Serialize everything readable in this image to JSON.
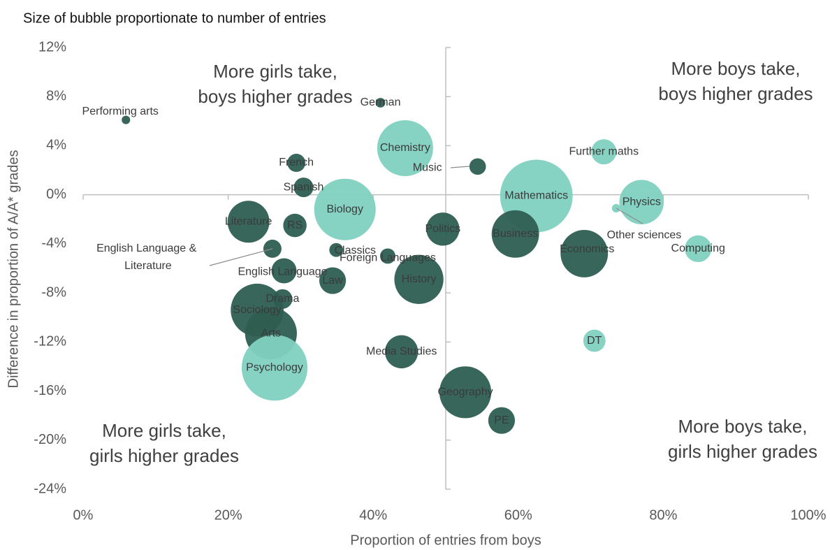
{
  "chart_data": {
    "type": "bubble",
    "title": "Size of bubble proportionate to number of entries",
    "x_label": "Proportion of entries from boys",
    "y_label": "Difference in proportion of A/A* grades",
    "annotations": [
      [
        "More girls take,",
        "boys higher grades"
      ],
      [
        "More boys take,",
        "boys higher grades"
      ],
      [
        "More girls take,",
        "girls higher grades"
      ],
      [
        "More boys take,",
        "girls higher grades"
      ]
    ],
    "labels": [
      "Performing arts",
      "German",
      "Chemistry",
      "Music",
      "Further maths",
      "French",
      "Spanish",
      "Biology",
      "Mathematics",
      "Physics",
      "Other sciences",
      "Literature",
      "RS",
      "Politics",
      "Business",
      "Economics",
      "Computing",
      "English Language & Literature",
      "Classics",
      "Foreign Languages",
      "English Language",
      "Law",
      "History",
      "Drama",
      "Sociology",
      "Arts",
      "DT",
      "Media Studies",
      "Psychology",
      "Geography",
      "PE"
    ],
    "x": [
      5.9,
      41.0,
      44.4,
      54.4,
      71.8,
      29.4,
      30.4,
      36.1,
      62.5,
      77.0,
      73.5,
      22.8,
      29.2,
      49.6,
      59.6,
      69.1,
      84.8,
      26.1,
      34.9,
      42.0,
      27.7,
      34.4,
      46.3,
      27.5,
      24.0,
      25.9,
      70.5,
      43.9,
      26.4,
      52.7,
      57.7
    ],
    "y": [
      6.1,
      7.5,
      3.8,
      2.3,
      3.5,
      2.6,
      0.6,
      -1.2,
      -0.1,
      -0.6,
      -1.1,
      -2.2,
      -2.5,
      -2.8,
      -3.2,
      -4.8,
      -4.4,
      -4.4,
      -4.5,
      -5.0,
      -6.2,
      -7.0,
      -6.9,
      -8.5,
      -9.4,
      -11.3,
      -11.9,
      -12.8,
      -14.1,
      -16.1,
      -18.4
    ],
    "sizes": [
      1.3,
      1.7,
      57,
      5,
      11.5,
      6,
      7,
      69,
      96,
      36,
      1.3,
      32,
      10,
      20,
      41,
      41,
      13,
      6,
      3.5,
      4.3,
      11.5,
      13,
      44,
      7,
      51,
      49,
      9,
      20,
      79,
      49,
      13
    ],
    "colors": [
      "#2e5e51",
      "#2e5e51",
      "#7fd1c1",
      "#2e5e51",
      "#7fd1c1",
      "#2e5e51",
      "#2e5e51",
      "#7fd1c1",
      "#7fd1c1",
      "#7fd1c1",
      "#7fd1c1",
      "#2e5e51",
      "#2e5e51",
      "#2e5e51",
      "#2e5e51",
      "#2e5e51",
      "#7fd1c1",
      "#2e5e51",
      "#2e5e51",
      "#2e5e51",
      "#2e5e51",
      "#2e5e51",
      "#2e5e51",
      "#2e5e51",
      "#2e5e51",
      "#2e5e51",
      "#7fd1c1",
      "#2e5e51",
      "#7fd1c1",
      "#2e5e51",
      "#2e5e51"
    ],
    "xlim": [
      0,
      100
    ],
    "ylim": [
      -24,
      12
    ],
    "xticks": [
      {
        "value": 0,
        "label": "0%"
      },
      {
        "value": 20,
        "label": "20%"
      },
      {
        "value": 40,
        "label": "40%"
      },
      {
        "value": 60,
        "label": "60%"
      },
      {
        "value": 80,
        "label": "80%"
      },
      {
        "value": 100,
        "label": "100%"
      }
    ],
    "yticks": [
      {
        "value": 12,
        "label": "12%"
      },
      {
        "value": 8,
        "label": "8%"
      },
      {
        "value": 4,
        "label": "4%"
      },
      {
        "value": 0,
        "label": "0%"
      },
      {
        "value": -4,
        "label": "-4%"
      },
      {
        "value": -8,
        "label": "-8%"
      },
      {
        "value": -12,
        "label": "-12%"
      },
      {
        "value": -16,
        "label": "-16%"
      },
      {
        "value": -20,
        "label": "-20%"
      },
      {
        "value": -24,
        "label": "-24%"
      }
    ]
  }
}
